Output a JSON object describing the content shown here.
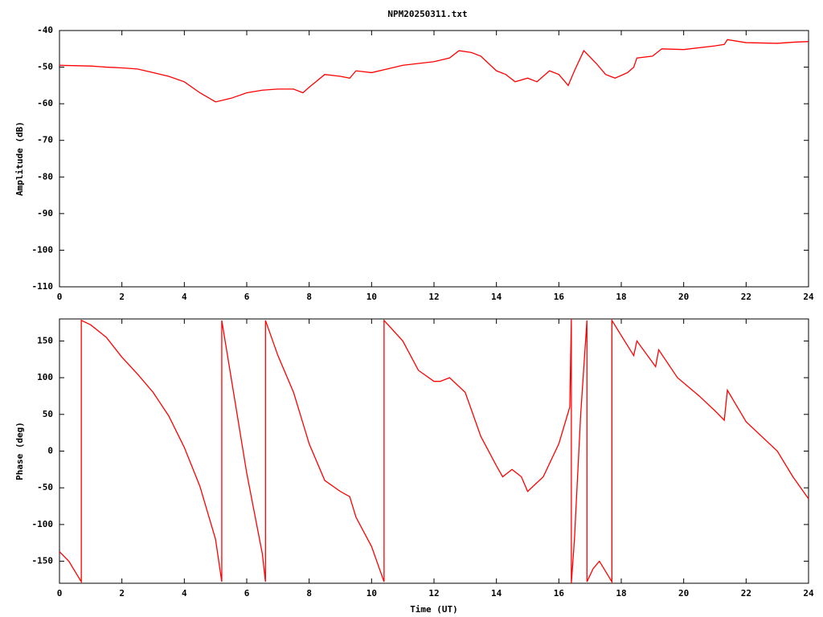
{
  "chart_data": [
    {
      "type": "line",
      "title": "NPM20250311.txt",
      "ylabel": "Amplitude (dB)",
      "xlim": [
        0,
        24
      ],
      "xticks": [
        0,
        2,
        4,
        6,
        8,
        10,
        12,
        14,
        16,
        18,
        20,
        22,
        24
      ],
      "ylim": [
        -110,
        -40
      ],
      "yticks": [
        -40,
        -50,
        -60,
        -70,
        -80,
        -90,
        -100,
        -110
      ],
      "series": [
        {
          "name": "Amplitude",
          "color": "#ff0000",
          "x": [
            0,
            1,
            1.5,
            2,
            2.5,
            3,
            3.5,
            4,
            4.5,
            5,
            5.5,
            6,
            6.5,
            7,
            7.5,
            7.8,
            8,
            8.5,
            9,
            9.3,
            9.5,
            10,
            10.5,
            11,
            11.5,
            12,
            12.5,
            12.8,
            13.2,
            13.5,
            14,
            14.3,
            14.6,
            15,
            15.3,
            15.7,
            16,
            16.3,
            16.5,
            16.8,
            17.2,
            17.5,
            17.8,
            18.2,
            18.4,
            18.5,
            19,
            19.3,
            20,
            21,
            21.3,
            21.4,
            22,
            23,
            23.5,
            24
          ],
          "values": [
            -49.5,
            -49.7,
            -50,
            -50.2,
            -50.5,
            -51.5,
            -52.5,
            -54,
            -57,
            -59.5,
            -58.5,
            -57,
            -56.3,
            -56,
            -56,
            -57,
            -55.5,
            -52,
            -52.5,
            -53,
            -51,
            -51.5,
            -50.5,
            -49.5,
            -49,
            -48.5,
            -47.5,
            -45.5,
            -46,
            -47,
            -51,
            -52,
            -54,
            -53,
            -54,
            -51,
            -52,
            -55,
            -51,
            -45.5,
            -49,
            -52,
            -53,
            -51.5,
            -50,
            -47.5,
            -47,
            -45,
            -45.2,
            -44.2,
            -43.8,
            -42.5,
            -43.3,
            -43.5,
            -43.2,
            -43
          ]
        }
      ]
    },
    {
      "type": "line",
      "ylabel": "Phase (deg)",
      "xlabel": "Time (UT)",
      "xlim": [
        0,
        24
      ],
      "xticks": [
        0,
        2,
        4,
        6,
        8,
        10,
        12,
        14,
        16,
        18,
        20,
        22,
        24
      ],
      "ylim": [
        -180,
        180
      ],
      "yticks": [
        150,
        100,
        50,
        0,
        -50,
        -100,
        -150
      ],
      "series": [
        {
          "name": "Phase",
          "color": "#ff0000",
          "x": [
            0,
            0.3,
            0.7,
            0.7,
            1,
            1.5,
            2,
            2.5,
            3,
            3.5,
            4,
            4.5,
            5,
            5.2,
            5.2,
            5.5,
            6,
            6.5,
            6.6,
            6.6,
            7,
            7.5,
            8,
            8.5,
            9,
            9.3,
            9.5,
            10,
            10.4,
            10.4,
            11,
            11.5,
            12,
            12.2,
            12.5,
            13,
            13.5,
            14,
            14.2,
            14.5,
            14.8,
            15,
            15.5,
            16,
            16.35,
            16.4,
            16.4,
            16.5,
            16.7,
            16.9,
            16.9,
            17.1,
            17.3,
            17.7,
            17.7,
            18.4,
            18.5,
            19.1,
            19.2,
            19.8,
            20.5,
            21,
            21.3,
            21.4,
            22,
            23,
            23.5,
            24
          ],
          "values": [
            -137,
            -150,
            -178,
            178,
            172,
            155,
            128,
            105,
            80,
            48,
            5,
            -48,
            -120,
            -178,
            178,
            100,
            -30,
            -140,
            -178,
            178,
            130,
            80,
            10,
            -40,
            -55,
            -62,
            -90,
            -130,
            -178,
            178,
            150,
            110,
            95,
            95,
            100,
            80,
            20,
            -20,
            -35,
            -25,
            -35,
            -55,
            -35,
            10,
            60,
            180,
            -180,
            -120,
            50,
            178,
            -178,
            -160,
            -150,
            -178,
            178,
            130,
            150,
            115,
            138,
            100,
            75,
            55,
            42,
            83,
            40,
            0,
            -35,
            -65
          ]
        }
      ]
    }
  ]
}
